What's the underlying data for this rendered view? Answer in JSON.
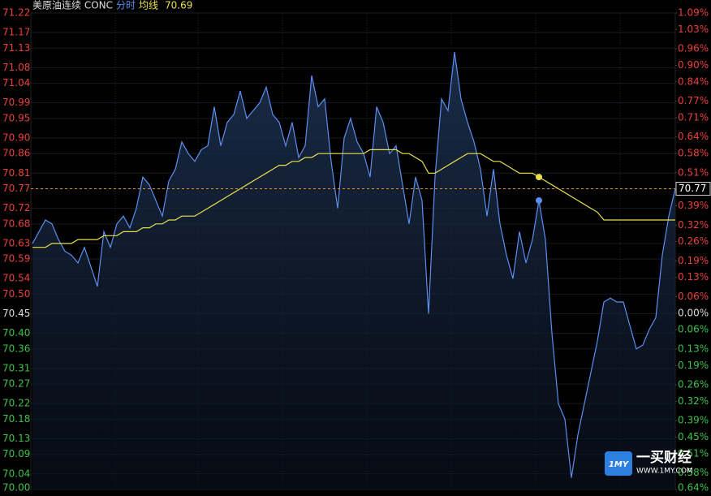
{
  "chart_data": {
    "type": "line",
    "title": "美原油连续 CONC",
    "mode_label": "分时",
    "avg_label": "均线",
    "avg_value": 70.69,
    "last_price": 70.77,
    "watermark": {
      "name": "一买财经",
      "site": "WWW.1MY.COM",
      "logo": "1MY"
    },
    "ylim": [
      70.0,
      71.22
    ],
    "yticks": [
      71.22,
      71.17,
      71.13,
      71.08,
      71.04,
      70.99,
      70.95,
      {
        "value": 70.9,
        "label": "70.90"
      },
      70.86,
      70.81,
      70.77,
      70.72,
      70.68,
      70.63,
      70.59,
      70.54,
      {
        "value": 70.5,
        "label": "70.50"
      },
      70.45,
      {
        "value": 70.4,
        "label": "70.40"
      },
      70.36,
      70.31,
      70.27,
      70.22,
      70.18,
      70.13,
      70.09,
      70.04,
      {
        "value": 70.0,
        "label": "70.00"
      }
    ],
    "y2lim": [
      -0.64,
      1.09
    ],
    "y2ticks": [
      {
        "value": 1.09,
        "label": "1.09%"
      },
      {
        "value": 1.03,
        "label": "1.03%"
      },
      {
        "value": 0.96,
        "label": "0.96%"
      },
      {
        "value": 0.9,
        "label": "0.90%"
      },
      {
        "value": 0.84,
        "label": "0.84%"
      },
      {
        "value": 0.77,
        "label": "0.77%"
      },
      {
        "value": 0.71,
        "label": "0.71%"
      },
      {
        "value": 0.64,
        "label": "0.64%"
      },
      {
        "value": 0.58,
        "label": "0.58%"
      },
      {
        "value": 0.51,
        "label": "0.51%"
      },
      {
        "value": 0.45,
        "label": "0.45%"
      },
      {
        "value": 0.39,
        "label": "0.39%"
      },
      {
        "value": 0.32,
        "label": "0.32%"
      },
      {
        "value": 0.26,
        "label": "0.26%"
      },
      {
        "value": 0.19,
        "label": "0.19%"
      },
      {
        "value": 0.13,
        "label": "0.13%"
      },
      {
        "value": 0.06,
        "label": "0.06%"
      },
      {
        "value": 0,
        "label": "0.00%"
      },
      {
        "value": -0.06,
        "label": "0.06%"
      },
      {
        "value": -0.13,
        "label": "0.13%"
      },
      {
        "value": -0.19,
        "label": "0.19%"
      },
      {
        "value": -0.26,
        "label": "0.26%"
      },
      {
        "value": -0.32,
        "label": "0.32%"
      },
      {
        "value": -0.39,
        "label": "0.39%"
      },
      {
        "value": -0.45,
        "label": "0.45%"
      },
      {
        "value": -0.51,
        "label": "0.51%"
      },
      {
        "value": -0.58,
        "label": "0.58%"
      },
      {
        "value": -0.64,
        "label": "0.64%"
      }
    ],
    "grid": true,
    "series": [
      {
        "name": "分时",
        "color": "#5b8ff0",
        "values": [
          70.63,
          70.66,
          70.69,
          70.68,
          70.64,
          70.61,
          70.6,
          70.58,
          70.62,
          70.57,
          70.52,
          70.66,
          70.62,
          70.68,
          70.7,
          70.67,
          70.72,
          70.8,
          70.78,
          70.74,
          70.7,
          70.79,
          70.82,
          70.89,
          70.86,
          70.84,
          70.87,
          70.88,
          70.98,
          70.88,
          70.94,
          70.96,
          71.02,
          70.95,
          70.97,
          70.99,
          71.03,
          70.96,
          70.94,
          70.88,
          70.94,
          70.85,
          70.88,
          71.06,
          70.98,
          71.0,
          70.84,
          70.72,
          70.9,
          70.95,
          70.89,
          70.86,
          70.8,
          70.98,
          70.94,
          70.86,
          70.88,
          70.78,
          70.68,
          70.8,
          70.74,
          70.45,
          70.8,
          71.0,
          70.97,
          71.12,
          71.0,
          70.94,
          70.89,
          70.82,
          70.7,
          70.82,
          70.68,
          70.6,
          70.54,
          70.66,
          70.58,
          70.64,
          70.74,
          70.64,
          70.4,
          70.22,
          70.18,
          70.03,
          70.14,
          70.22,
          70.3,
          70.38,
          70.48,
          70.49,
          70.48,
          70.48,
          70.42,
          70.36,
          70.37,
          70.41,
          70.44,
          70.6,
          70.7,
          70.77
        ]
      },
      {
        "name": "均线",
        "color": "#e8e04a",
        "values": [
          70.62,
          70.62,
          70.62,
          70.63,
          70.63,
          70.63,
          70.63,
          70.64,
          70.64,
          70.64,
          70.64,
          70.65,
          70.65,
          70.65,
          70.66,
          70.66,
          70.66,
          70.67,
          70.67,
          70.68,
          70.68,
          70.69,
          70.69,
          70.7,
          70.7,
          70.7,
          70.71,
          70.72,
          70.73,
          70.74,
          70.75,
          70.76,
          70.77,
          70.78,
          70.79,
          70.8,
          70.81,
          70.82,
          70.83,
          70.83,
          70.84,
          70.84,
          70.85,
          70.85,
          70.86,
          70.86,
          70.86,
          70.86,
          70.86,
          70.86,
          70.86,
          70.86,
          70.87,
          70.87,
          70.87,
          70.87,
          70.87,
          70.86,
          70.86,
          70.85,
          70.84,
          70.81,
          70.81,
          70.82,
          70.83,
          70.84,
          70.85,
          70.86,
          70.86,
          70.86,
          70.85,
          70.84,
          70.84,
          70.83,
          70.82,
          70.81,
          70.81,
          70.81,
          70.8,
          70.79,
          70.78,
          70.77,
          70.76,
          70.75,
          70.74,
          70.73,
          70.72,
          70.71,
          70.69,
          70.69,
          70.69,
          70.69,
          70.69,
          70.69,
          70.69,
          70.69,
          70.69,
          70.69,
          70.69,
          70.69
        ]
      }
    ]
  }
}
